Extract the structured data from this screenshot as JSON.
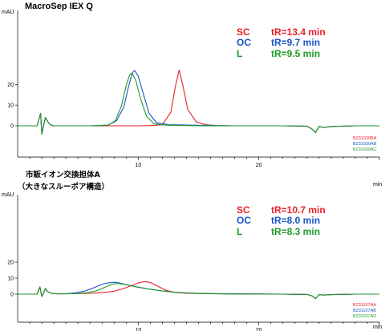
{
  "chart_data": [
    {
      "type": "line",
      "title": "MacroSep IEX Q",
      "ylabel": "mAU",
      "xlabel": "min",
      "xlim": [
        0,
        30
      ],
      "ylim": [
        -5,
        28
      ],
      "x_ticks": [
        10,
        20
      ],
      "y_ticks": [
        0,
        10,
        20
      ],
      "legend": [
        {
          "label": "SC",
          "text": "tR=13.4 min",
          "color": "#e8202a"
        },
        {
          "label": "OC",
          "text": "tR=9.7 min",
          "color": "#1a55c8"
        },
        {
          "label": "L",
          "text": "tR=9.5 min",
          "color": "#1e9a2a"
        }
      ],
      "sample_ids": [
        {
          "text": "B231030BA",
          "color": "#e8202a"
        },
        {
          "text": "B231030AB",
          "color": "#1a55c8"
        },
        {
          "text": "B231030AC",
          "color": "#1e9a2a"
        }
      ],
      "series": [
        {
          "name": "SC",
          "color": "#e8202a",
          "x": [
            0.0,
            1.6,
            1.9,
            2.0,
            2.1,
            2.3,
            2.5,
            2.7,
            3.0,
            4.0,
            6.0,
            8.0,
            10.0,
            11.0,
            12.0,
            12.7,
            13.1,
            13.4,
            13.7,
            14.1,
            14.8,
            15.6,
            16.5,
            18.0,
            20.0,
            22.0,
            24.0,
            24.4,
            24.7,
            25.0,
            25.4,
            26.0,
            28.0,
            30.0
          ],
          "y": [
            0.0,
            0.0,
            6.0,
            -4.0,
            -1.0,
            4.0,
            2.0,
            0.5,
            0.0,
            0.0,
            0.0,
            0.0,
            0.0,
            0.1,
            0.5,
            6.5,
            19.5,
            27.0,
            19.5,
            8.0,
            2.0,
            0.5,
            0.1,
            0.0,
            0.0,
            0.0,
            -0.2,
            -1.5,
            -3.2,
            -0.3,
            -0.8,
            -0.3,
            0.0,
            0.0
          ]
        },
        {
          "name": "OC",
          "color": "#1a55c8",
          "x": [
            0.0,
            1.6,
            1.9,
            2.0,
            2.1,
            2.3,
            2.5,
            2.7,
            3.0,
            4.0,
            6.0,
            7.5,
            8.2,
            8.8,
            9.2,
            9.5,
            9.7,
            10.0,
            10.4,
            10.9,
            11.5,
            12.5,
            14.0,
            16.0,
            18.0,
            20.0,
            22.0,
            24.0,
            24.4,
            24.7,
            25.0,
            25.4,
            26.0,
            28.0,
            30.0
          ],
          "y": [
            0.0,
            0.0,
            6.0,
            -4.0,
            -1.0,
            4.0,
            2.0,
            0.5,
            0.0,
            0.0,
            0.0,
            0.3,
            2.5,
            9.0,
            19.0,
            25.5,
            26.8,
            24.0,
            16.0,
            6.0,
            1.6,
            0.6,
            0.4,
            0.2,
            0.0,
            0.0,
            0.0,
            -0.2,
            -1.5,
            -3.2,
            -0.3,
            -0.8,
            -0.3,
            0.0,
            0.0
          ]
        },
        {
          "name": "L",
          "color": "#1e9a2a",
          "x": [
            0.0,
            1.6,
            1.9,
            2.0,
            2.1,
            2.3,
            2.5,
            2.7,
            3.0,
            4.0,
            6.0,
            7.5,
            8.1,
            8.6,
            9.0,
            9.3,
            9.5,
            9.8,
            10.2,
            10.7,
            11.3,
            12.3,
            14.0,
            16.0,
            18.0,
            20.0,
            22.0,
            24.0,
            24.4,
            24.7,
            25.0,
            25.4,
            26.0,
            28.0,
            30.0
          ],
          "y": [
            0.0,
            0.0,
            6.0,
            -4.0,
            -1.0,
            4.0,
            2.0,
            0.5,
            0.0,
            0.0,
            0.0,
            0.3,
            2.5,
            9.5,
            19.5,
            24.8,
            25.5,
            22.0,
            13.0,
            4.5,
            1.0,
            0.3,
            0.1,
            0.0,
            0.0,
            0.0,
            0.0,
            -0.2,
            -1.5,
            -3.2,
            -0.3,
            -0.8,
            -0.3,
            0.0,
            0.0
          ]
        }
      ]
    },
    {
      "type": "line",
      "title_lines": [
        "市販イオン交換担体A",
        "（大きなスルーポア構造）"
      ],
      "ylabel": "mAU",
      "xlabel": "min",
      "xlim": [
        0,
        30
      ],
      "ylim": [
        -3,
        28
      ],
      "x_ticks": [
        10,
        20
      ],
      "y_ticks": [
        0,
        10,
        20
      ],
      "legend": [
        {
          "label": "SC",
          "text": "tR=10.7 min",
          "color": "#e8202a"
        },
        {
          "label": "OC",
          "text": "tR=8.0 min",
          "color": "#1a55c8"
        },
        {
          "label": "L",
          "text": "tR=8.3 min",
          "color": "#1e9a2a"
        }
      ],
      "sample_ids": [
        {
          "text": "B231107AA",
          "color": "#e8202a"
        },
        {
          "text": "B231107AB",
          "color": "#1a55c8"
        },
        {
          "text": "B231107AD",
          "color": "#1e9a2a"
        }
      ],
      "series": [
        {
          "name": "SC",
          "color": "#e8202a",
          "x": [
            0.0,
            1.6,
            1.85,
            2.0,
            2.1,
            2.3,
            2.5,
            2.8,
            3.2,
            4.0,
            6.0,
            7.0,
            8.0,
            8.8,
            9.5,
            10.0,
            10.3,
            10.6,
            11.0,
            11.6,
            12.3,
            13.0,
            14.0,
            15.5,
            18.0,
            22.0,
            24.0,
            24.4,
            24.7,
            25.0,
            25.4,
            26.0,
            28.0,
            30.0
          ],
          "y": [
            0.0,
            0.0,
            4.5,
            -1.5,
            0.0,
            3.5,
            1.5,
            0.5,
            0.2,
            0.2,
            0.5,
            0.9,
            1.8,
            3.5,
            5.5,
            7.0,
            7.5,
            7.8,
            7.3,
            5.0,
            2.4,
            1.1,
            0.5,
            0.3,
            0.2,
            0.0,
            -0.2,
            -1.0,
            -2.8,
            -0.3,
            -0.6,
            -0.3,
            0.0,
            0.0
          ]
        },
        {
          "name": "OC",
          "color": "#1a55c8",
          "x": [
            0.0,
            1.6,
            1.85,
            2.0,
            2.1,
            2.3,
            2.5,
            2.8,
            3.2,
            4.0,
            4.8,
            5.5,
            6.2,
            6.8,
            7.3,
            7.8,
            8.0,
            8.3,
            8.7,
            9.3,
            10.0,
            11.0,
            12.0,
            13.0,
            14.0,
            15.5,
            17.0,
            18.5,
            20.0,
            22.0,
            24.0,
            24.4,
            24.7,
            25.0,
            25.4,
            26.0,
            28.0,
            30.0
          ],
          "y": [
            0.0,
            0.0,
            4.5,
            -1.5,
            0.0,
            3.5,
            1.5,
            0.5,
            0.2,
            0.3,
            0.8,
            1.8,
            3.6,
            5.5,
            6.8,
            7.3,
            7.4,
            7.2,
            6.5,
            5.4,
            4.3,
            3.0,
            2.0,
            1.2,
            0.7,
            0.4,
            0.2,
            0.1,
            0.1,
            0.0,
            -0.2,
            -1.0,
            -2.8,
            -0.3,
            -0.6,
            -0.3,
            0.0,
            0.0
          ]
        },
        {
          "name": "L",
          "color": "#1e9a2a",
          "x": [
            0.0,
            1.6,
            1.85,
            2.0,
            2.1,
            2.3,
            2.5,
            2.8,
            3.2,
            4.0,
            5.0,
            5.8,
            6.5,
            7.1,
            7.6,
            8.0,
            8.3,
            8.6,
            9.0,
            9.6,
            10.3,
            11.2,
            12.2,
            13.2,
            14.5,
            16.0,
            18.0,
            20.0,
            22.0,
            24.0,
            24.4,
            24.7,
            25.0,
            25.4,
            26.0,
            28.0,
            30.0
          ],
          "y": [
            0.0,
            0.0,
            4.5,
            -1.5,
            0.0,
            3.5,
            1.5,
            0.5,
            0.2,
            0.2,
            0.4,
            0.9,
            2.0,
            3.8,
            5.5,
            6.4,
            6.6,
            6.4,
            5.9,
            5.0,
            4.0,
            2.8,
            1.8,
            1.1,
            0.6,
            0.3,
            0.1,
            0.0,
            0.0,
            -0.2,
            -1.0,
            -2.8,
            -0.3,
            -0.6,
            -0.3,
            0.0,
            0.0
          ]
        }
      ]
    }
  ]
}
